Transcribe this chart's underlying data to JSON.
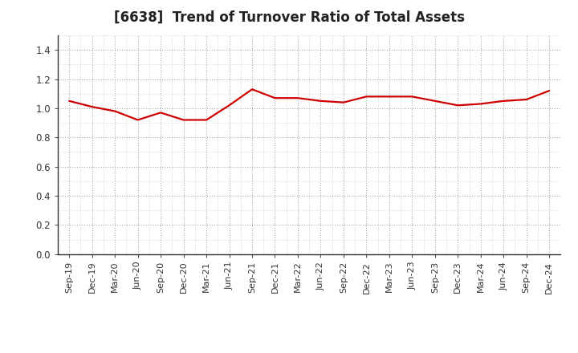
{
  "title": "[6638]  Trend of Turnover Ratio of Total Assets",
  "x_labels": [
    "Sep-19",
    "Dec-19",
    "Mar-20",
    "Jun-20",
    "Sep-20",
    "Dec-20",
    "Mar-21",
    "Jun-21",
    "Sep-21",
    "Dec-21",
    "Mar-22",
    "Jun-22",
    "Sep-22",
    "Dec-22",
    "Mar-23",
    "Jun-23",
    "Sep-23",
    "Dec-23",
    "Mar-24",
    "Jun-24",
    "Sep-24",
    "Dec-24"
  ],
  "y_values": [
    1.05,
    1.01,
    0.98,
    0.92,
    0.97,
    0.92,
    0.92,
    1.02,
    1.13,
    1.07,
    1.07,
    1.05,
    1.04,
    1.08,
    1.08,
    1.08,
    1.05,
    1.02,
    1.03,
    1.05,
    1.06,
    1.12
  ],
  "line_color": "#cc0000",
  "line_width": 1.6,
  "ylim": [
    0.0,
    1.5
  ],
  "yticks": [
    0.0,
    0.2,
    0.4,
    0.6,
    0.8,
    1.0,
    1.2,
    1.4
  ],
  "grid_color": "#aaaaaa",
  "background_color": "#ffffff",
  "title_fontsize": 12,
  "tick_fontsize": 8
}
